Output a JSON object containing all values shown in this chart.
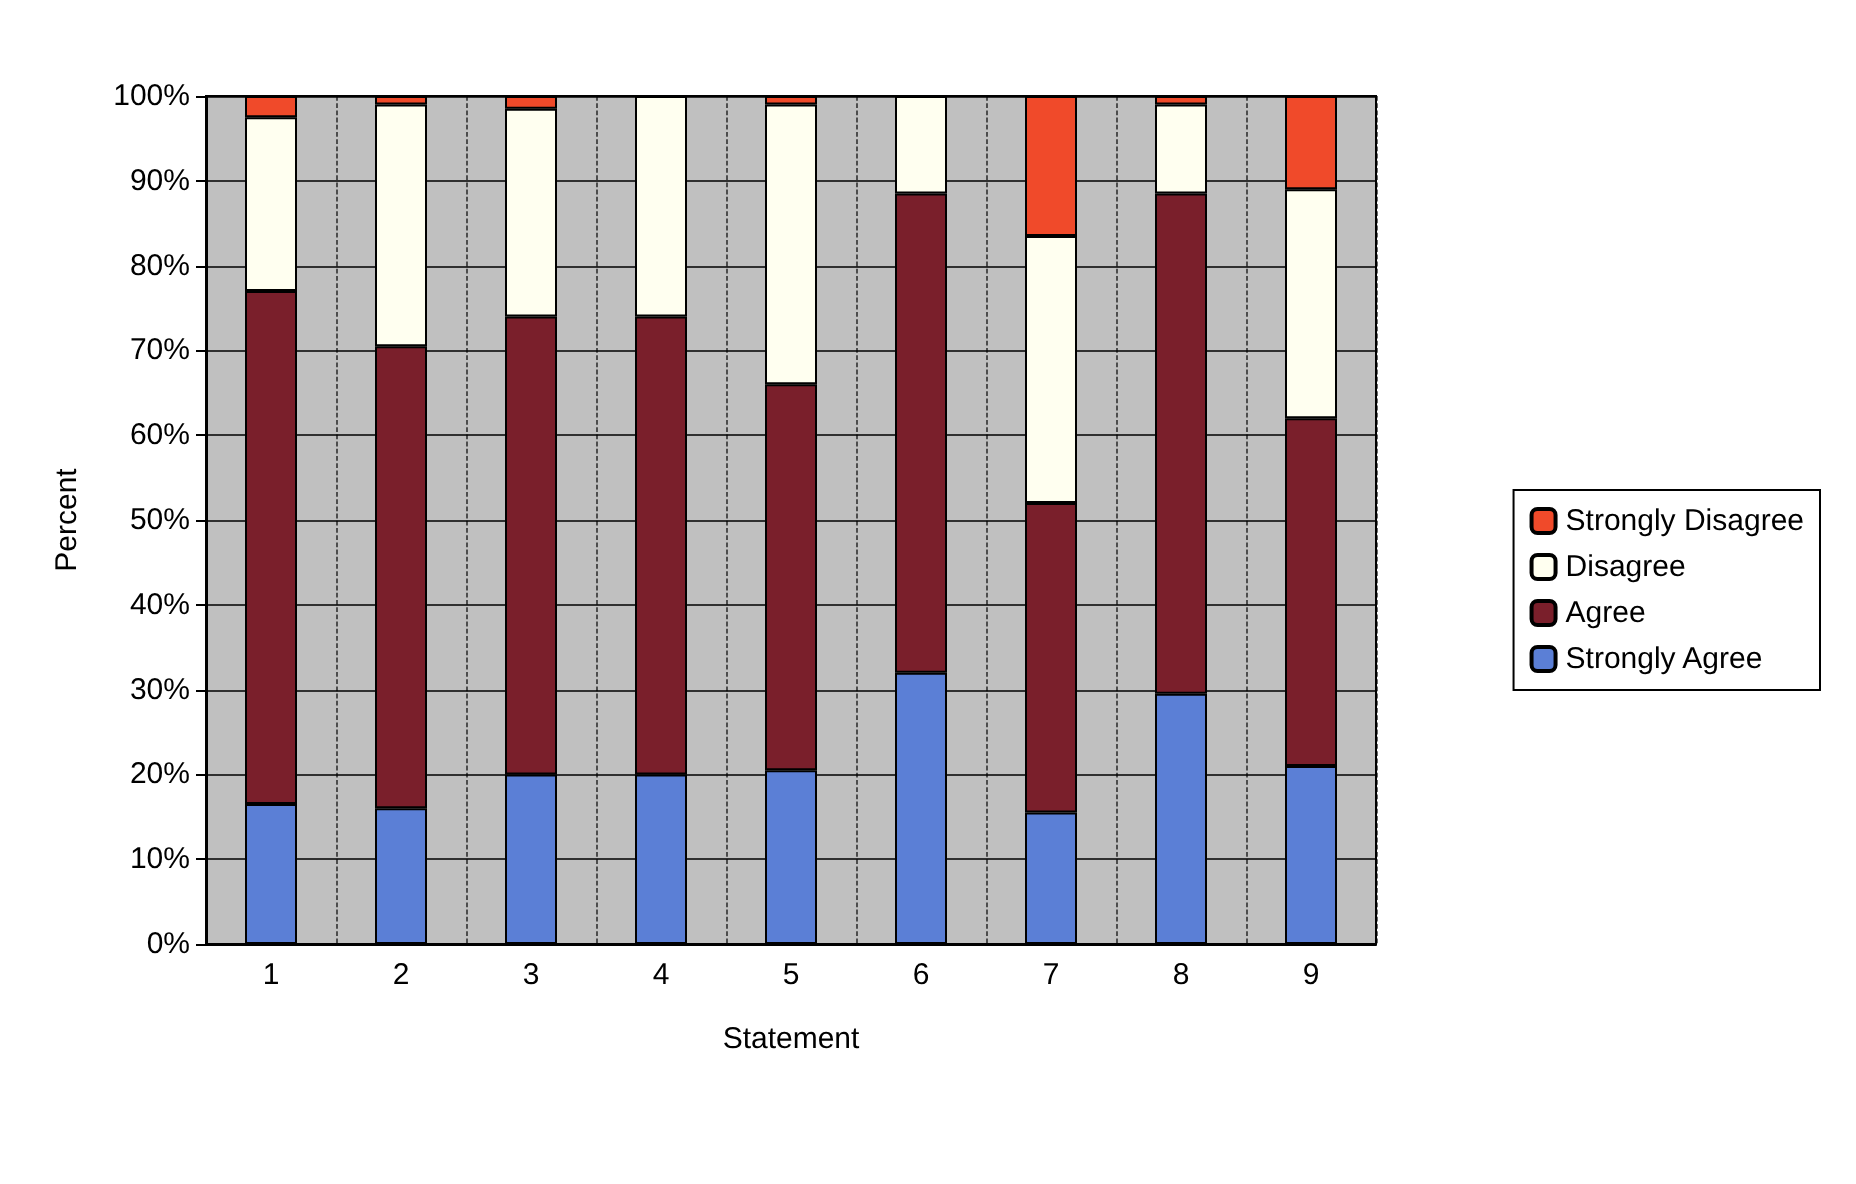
{
  "chart_data": {
    "type": "bar",
    "stacked": true,
    "xlabel": "Statement",
    "ylabel": "Percent",
    "categories": [
      "1",
      "2",
      "3",
      "4",
      "5",
      "6",
      "7",
      "8",
      "9"
    ],
    "series": [
      {
        "name": "Strongly Agree",
        "color": "#5b7fd6",
        "values": [
          16.5,
          16,
          20,
          20,
          20.5,
          32,
          15.5,
          29.5,
          21
        ]
      },
      {
        "name": "Agree",
        "color": "#7a1f2b",
        "values": [
          60.5,
          54.5,
          54,
          54,
          45.5,
          56.5,
          36.5,
          59,
          41
        ]
      },
      {
        "name": "Disagree",
        "color": "#fffff0",
        "values": [
          20.5,
          28.5,
          24.5,
          26,
          33,
          11.5,
          31.5,
          10.5,
          27
        ]
      },
      {
        "name": "Strongly Disagree",
        "color": "#f04a2a",
        "values": [
          2.5,
          1,
          1.5,
          0,
          1,
          0,
          16.5,
          1,
          11
        ]
      }
    ],
    "ylim": [
      0,
      100
    ],
    "yticks": [
      {
        "value": 0,
        "label": "0%"
      },
      {
        "value": 10,
        "label": "10%"
      },
      {
        "value": 20,
        "label": "20%"
      },
      {
        "value": 30,
        "label": "30%"
      },
      {
        "value": 40,
        "label": "40%"
      },
      {
        "value": 50,
        "label": "50%"
      },
      {
        "value": 60,
        "label": "60%"
      },
      {
        "value": 70,
        "label": "70%"
      },
      {
        "value": 80,
        "label": "80%"
      },
      {
        "value": 90,
        "label": "90%"
      },
      {
        "value": 100,
        "label": "100%"
      }
    ],
    "grid": true,
    "legend": "right"
  }
}
